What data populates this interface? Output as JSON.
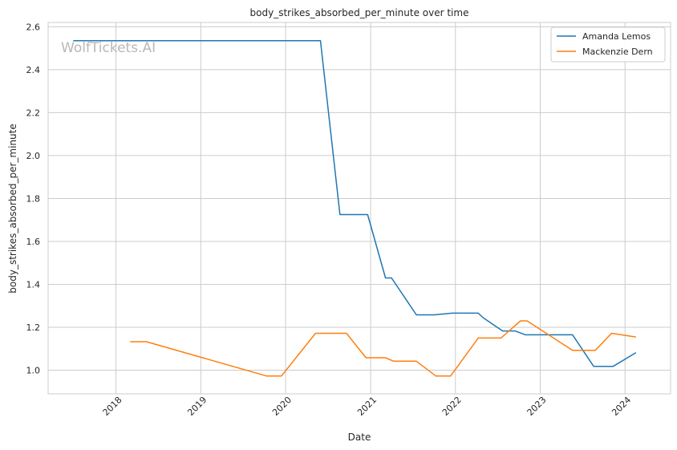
{
  "chart_data": {
    "type": "line",
    "title": "body_strikes_absorbed_per_minute over time",
    "xlabel": "Date",
    "ylabel": "body_strikes_absorbed_per_minute",
    "watermark": "WolfTickets.AI",
    "x_axis": {
      "scale": "time",
      "range": [
        "2017-03-15",
        "2024-07-15"
      ],
      "ticks": [
        "2018-01-01",
        "2019-01-01",
        "2020-01-01",
        "2021-01-01",
        "2022-01-01",
        "2023-01-01",
        "2024-01-01"
      ],
      "tick_labels": [
        "2018",
        "2019",
        "2020",
        "2021",
        "2022",
        "2023",
        "2024"
      ]
    },
    "y_axis": {
      "range": [
        0.89,
        2.62
      ],
      "ticks": [
        1.0,
        1.2,
        1.4,
        1.6,
        1.8,
        2.0,
        2.2,
        2.4,
        2.6
      ],
      "tick_labels": [
        "1.0",
        "1.2",
        "1.4",
        "1.6",
        "1.8",
        "2.0",
        "2.2",
        "2.4",
        "2.6"
      ]
    },
    "grid": true,
    "legend_position": "top-right",
    "series": [
      {
        "name": "Amanda Lemos",
        "color": "#1f77b4",
        "points": [
          [
            "2017-07-01",
            2.535
          ],
          [
            "2020-05-30",
            2.535
          ],
          [
            "2020-08-22",
            1.725
          ],
          [
            "2020-12-19",
            1.725
          ],
          [
            "2021-03-06",
            1.43
          ],
          [
            "2021-04-01",
            1.43
          ],
          [
            "2021-07-17",
            1.258
          ],
          [
            "2021-10-02",
            1.258
          ],
          [
            "2021-12-18",
            1.266
          ],
          [
            "2022-04-09",
            1.266
          ],
          [
            "2022-04-30",
            1.245
          ],
          [
            "2022-07-23",
            1.183
          ],
          [
            "2022-09-15",
            1.183
          ],
          [
            "2022-10-29",
            1.165
          ],
          [
            "2023-05-20",
            1.165
          ],
          [
            "2023-08-19",
            1.018
          ],
          [
            "2023-11-11",
            1.018
          ],
          [
            "2024-02-17",
            1.082
          ]
        ]
      },
      {
        "name": "Mackenzie Dern",
        "color": "#ff7f0e",
        "points": [
          [
            "2018-03-03",
            1.133
          ],
          [
            "2018-05-12",
            1.133
          ],
          [
            "2019-10-12",
            0.973
          ],
          [
            "2019-12-14",
            0.973
          ],
          [
            "2020-05-09",
            1.172
          ],
          [
            "2020-09-19",
            1.172
          ],
          [
            "2020-12-12",
            1.058
          ],
          [
            "2021-03-06",
            1.058
          ],
          [
            "2021-04-10",
            1.042
          ],
          [
            "2021-07-17",
            1.042
          ],
          [
            "2021-10-09",
            0.973
          ],
          [
            "2021-12-11",
            0.973
          ],
          [
            "2022-04-09",
            1.15
          ],
          [
            "2022-07-16",
            1.15
          ],
          [
            "2022-10-08",
            1.23
          ],
          [
            "2022-11-05",
            1.23
          ],
          [
            "2023-05-20",
            1.093
          ],
          [
            "2023-08-26",
            1.093
          ],
          [
            "2023-11-04",
            1.172
          ],
          [
            "2024-02-17",
            1.155
          ]
        ]
      }
    ]
  }
}
